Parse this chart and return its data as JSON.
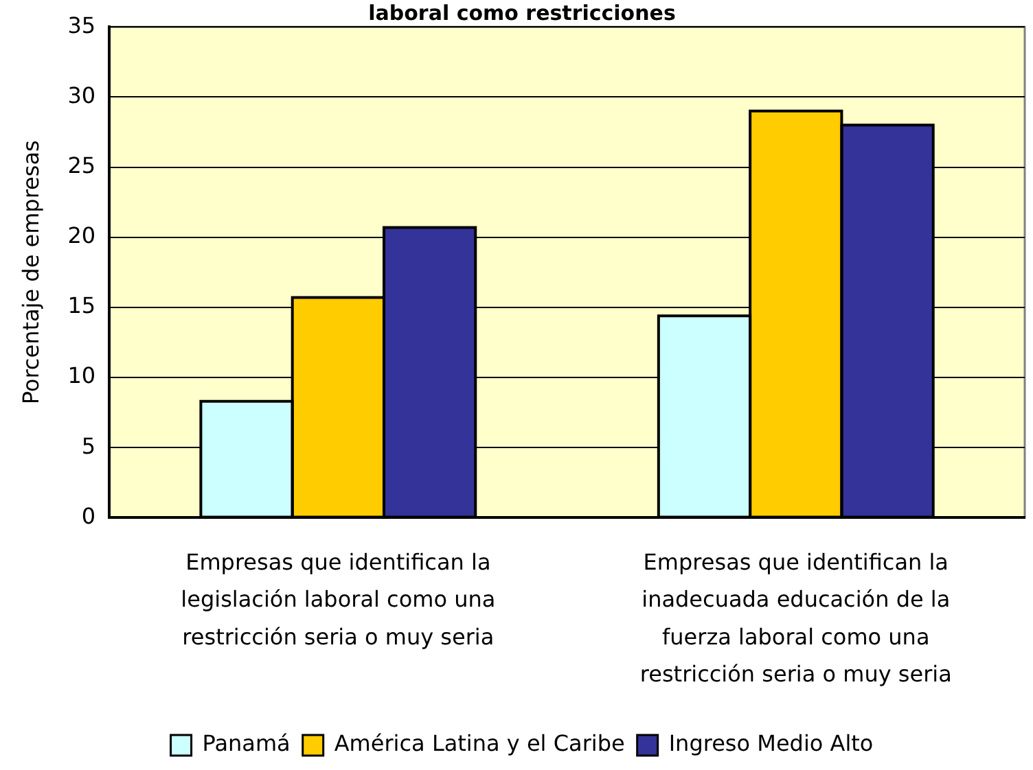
{
  "chart_data": {
    "type": "bar",
    "title": "laboral como restricciones",
    "ylabel": "Porcentaje de empresas",
    "categories": [
      "Empresas que identifican la legislación laboral como una restricción seria o muy seria",
      "Empresas que identifican la inadecuada educación de la fuerza laboral como una restricción seria o muy seria"
    ],
    "series": [
      {
        "name": "Panamá",
        "color": "#ccffff",
        "values": [
          8.3,
          14.4
        ]
      },
      {
        "name": "América Latina y el Caribe",
        "color": "#ffcc00",
        "values": [
          15.7,
          29.0
        ]
      },
      {
        "name": "Ingreso Medio Alto",
        "color": "#333399",
        "values": [
          20.7,
          28.0
        ]
      }
    ],
    "ylim": [
      0,
      35
    ],
    "yticks": [
      0,
      5,
      10,
      15,
      20,
      25,
      30,
      35
    ],
    "grid": "y",
    "legend": "bottom"
  }
}
